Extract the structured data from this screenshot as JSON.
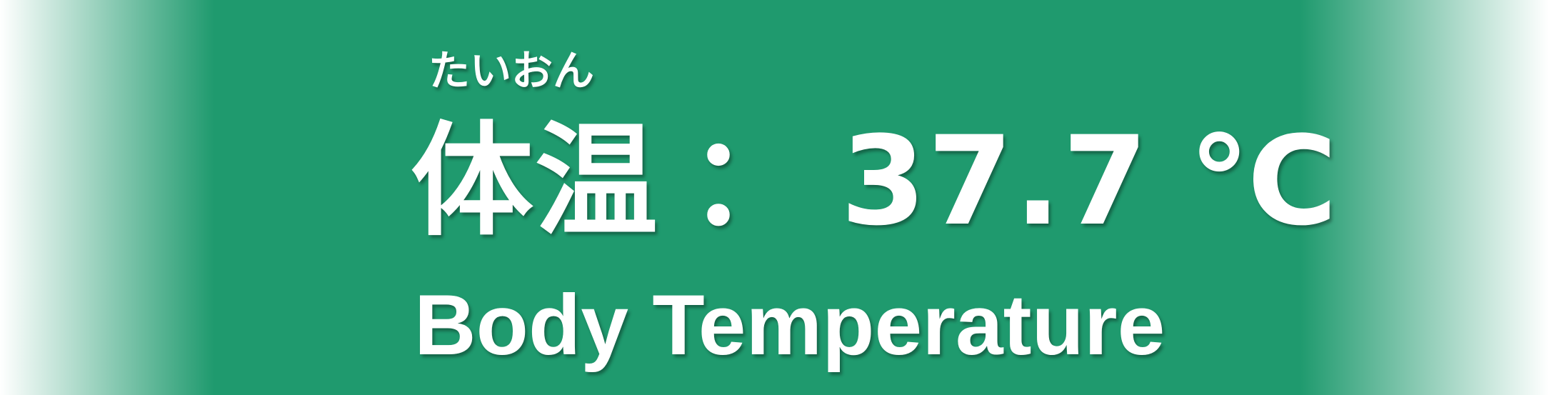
{
  "label": {
    "ruby": "たいおん",
    "japanese": "体温",
    "separator": "：",
    "english": "Body Temperature"
  },
  "reading": {
    "value": "37.7",
    "unit": "℃"
  },
  "colors": {
    "background": "#1f9a6e",
    "text": "#ffffff",
    "edge_fade": "#ffffff"
  }
}
